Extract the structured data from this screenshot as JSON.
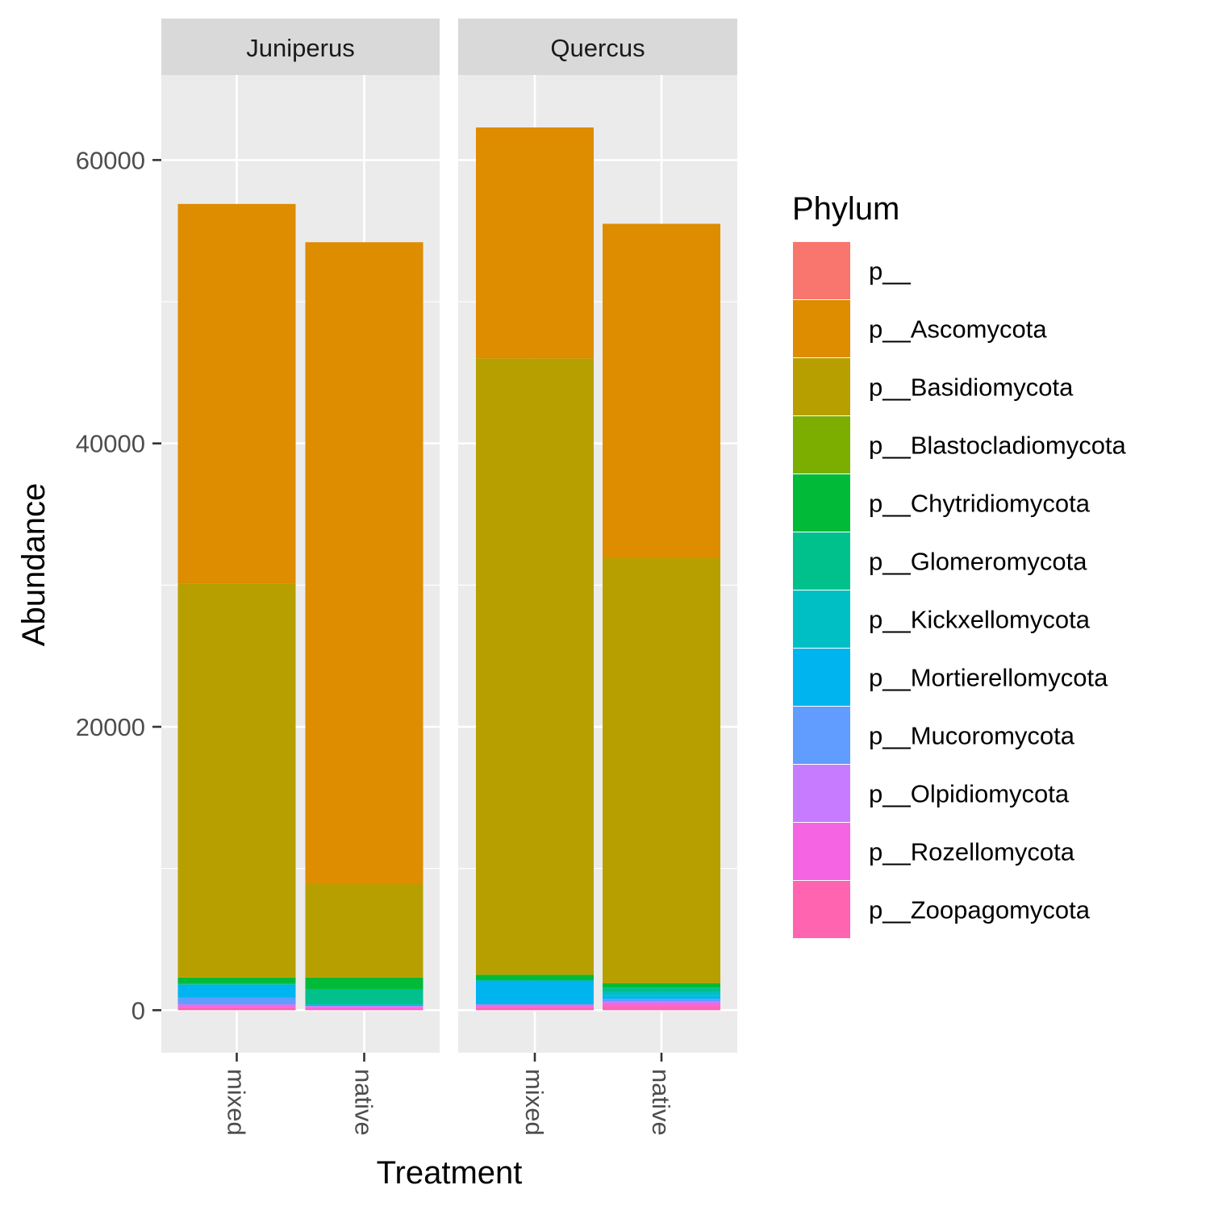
{
  "chart_data": {
    "type": "bar",
    "stacked": true,
    "facets": [
      "Juniperus",
      "Quercus"
    ],
    "categories": [
      "mixed",
      "native"
    ],
    "xlabel": "Treatment",
    "ylabel": "Abundance",
    "y_ticks": [
      "0",
      "20000",
      "40000",
      "60000"
    ],
    "y_tick_values": [
      0,
      20000,
      40000,
      60000
    ],
    "ylim": [
      -3000,
      66000
    ],
    "grid": true,
    "legend_position": "right",
    "legend_title": "Phylum",
    "series": [
      {
        "name": "p__",
        "color": "#F8766D",
        "values": {
          "Juniperus": [
            0,
            0
          ],
          "Quercus": [
            0,
            0
          ]
        }
      },
      {
        "name": "p__Ascomycota",
        "color": "#DE8C00",
        "values": {
          "Juniperus": [
            26800,
            45300
          ],
          "Quercus": [
            16300,
            23600
          ]
        }
      },
      {
        "name": "p__Basidiomycota",
        "color": "#B79F00",
        "values": {
          "Juniperus": [
            27800,
            6600
          ],
          "Quercus": [
            43500,
            30000
          ]
        }
      },
      {
        "name": "p__Blastocladiomycota",
        "color": "#7CAE00",
        "values": {
          "Juniperus": [
            0,
            0
          ],
          "Quercus": [
            0,
            0
          ]
        }
      },
      {
        "name": "p__Chytridiomycota",
        "color": "#00BA38",
        "values": {
          "Juniperus": [
            400,
            800
          ],
          "Quercus": [
            400,
            300
          ]
        }
      },
      {
        "name": "p__Glomeromycota",
        "color": "#00C08B",
        "values": {
          "Juniperus": [
            100,
            1100
          ],
          "Quercus": [
            0,
            300
          ]
        }
      },
      {
        "name": "p__Kickxellomycota",
        "color": "#00BFC4",
        "values": {
          "Juniperus": [
            0,
            0
          ],
          "Quercus": [
            0,
            300
          ]
        }
      },
      {
        "name": "p__Mortierellomycota",
        "color": "#00B4F0",
        "values": {
          "Juniperus": [
            900,
            100
          ],
          "Quercus": [
            1700,
            200
          ]
        }
      },
      {
        "name": "p__Mucoromycota",
        "color": "#619CFF",
        "values": {
          "Juniperus": [
            500,
            0
          ],
          "Quercus": [
            0,
            200
          ]
        }
      },
      {
        "name": "p__Olpidiomycota",
        "color": "#C77CFF",
        "values": {
          "Juniperus": [
            0,
            100
          ],
          "Quercus": [
            0,
            100
          ]
        }
      },
      {
        "name": "p__Rozellomycota",
        "color": "#F564E3",
        "values": {
          "Juniperus": [
            200,
            100
          ],
          "Quercus": [
            200,
            200
          ]
        }
      },
      {
        "name": "p__Zoopagomycota",
        "color": "#FF64B0",
        "values": {
          "Juniperus": [
            200,
            100
          ],
          "Quercus": [
            200,
            300
          ]
        }
      }
    ]
  }
}
